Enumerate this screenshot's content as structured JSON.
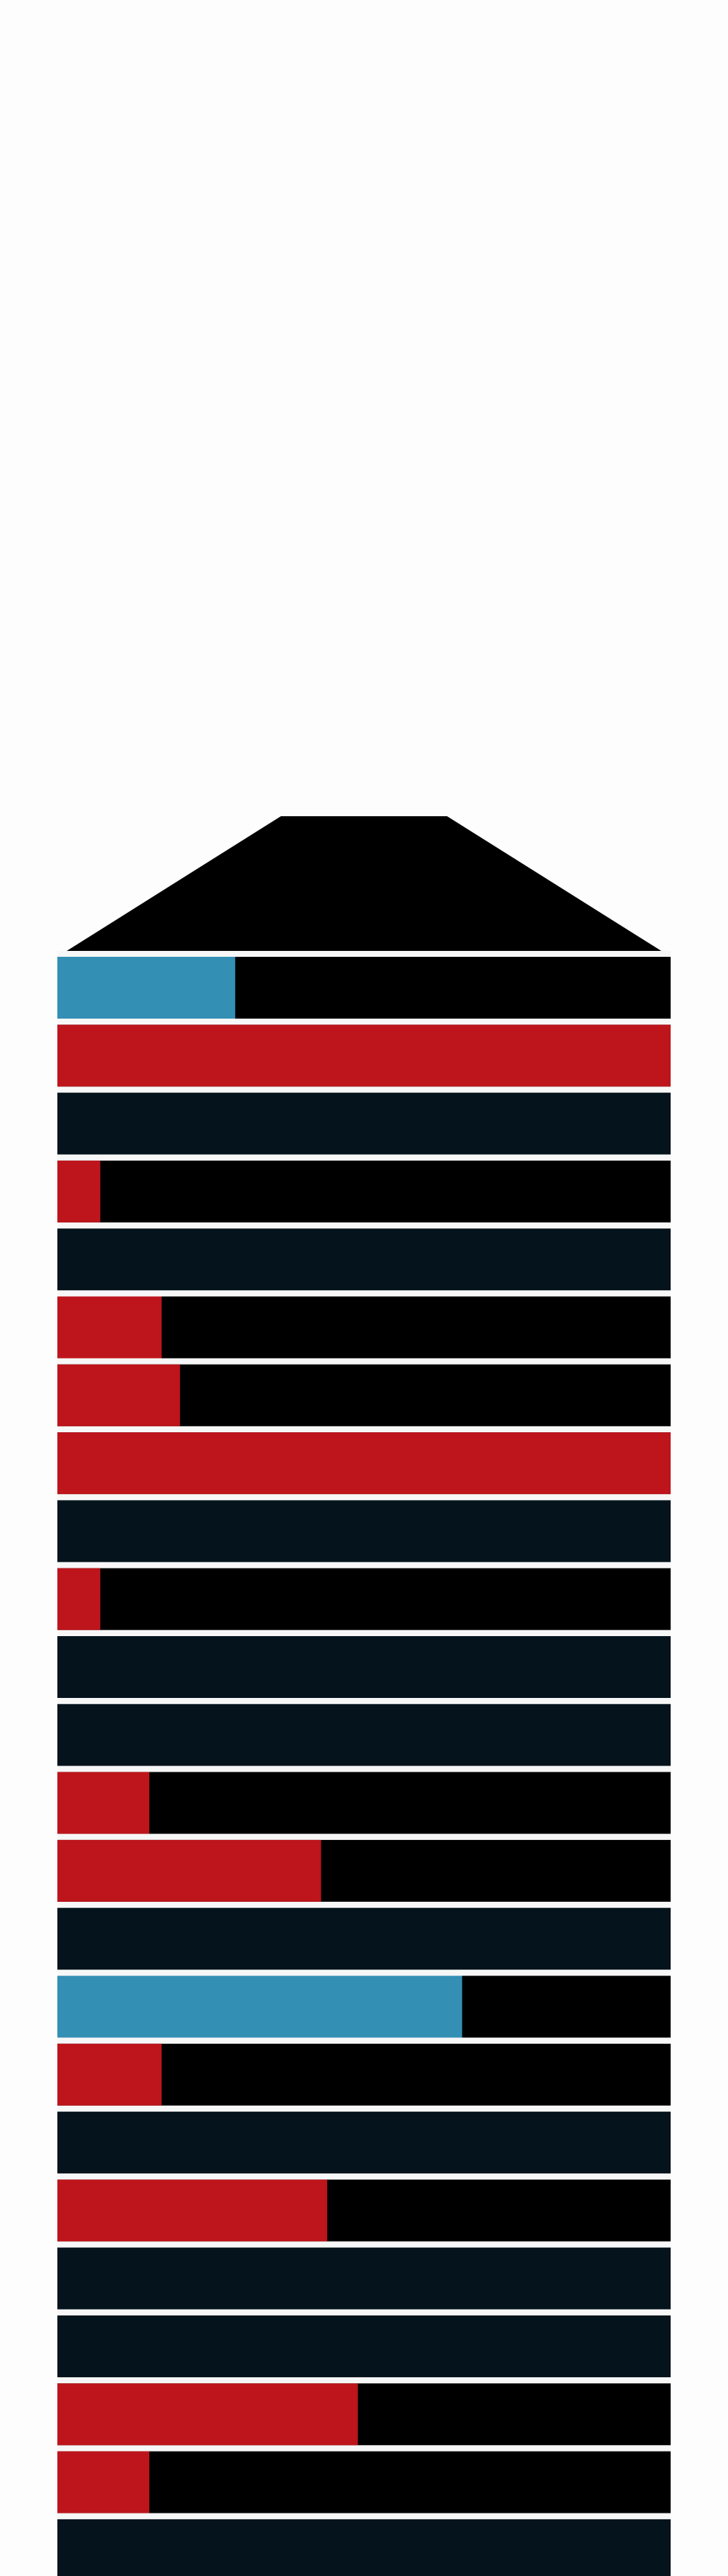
{
  "chart_data": {
    "type": "bar",
    "orientation": "horizontal",
    "stacked": true,
    "title": "",
    "xlabel": "",
    "ylabel": "",
    "xlim": [
      0,
      1
    ],
    "grid": false,
    "legend": "none",
    "colors": {
      "background": "#fdfdfd",
      "cap": "#000000",
      "track": "#000000",
      "empty_row": "#05141c",
      "highlight": "#338fb4",
      "active": "#be151c",
      "separator": "#f7f7f7"
    },
    "rows": [
      {
        "kind": "highlight",
        "value": 0.29
      },
      {
        "kind": "active",
        "value": 1.0
      },
      {
        "kind": "empty",
        "value": 0.0
      },
      {
        "kind": "active",
        "value": 0.07
      },
      {
        "kind": "empty",
        "value": 0.0
      },
      {
        "kind": "active",
        "value": 0.17
      },
      {
        "kind": "active",
        "value": 0.2
      },
      {
        "kind": "active",
        "value": 1.0
      },
      {
        "kind": "empty",
        "value": 0.0
      },
      {
        "kind": "active",
        "value": 0.07
      },
      {
        "kind": "empty",
        "value": 0.0
      },
      {
        "kind": "empty",
        "value": 0.0
      },
      {
        "kind": "active",
        "value": 0.15
      },
      {
        "kind": "active",
        "value": 0.43
      },
      {
        "kind": "empty",
        "value": 0.0
      },
      {
        "kind": "highlight",
        "value": 0.66
      },
      {
        "kind": "active",
        "value": 0.17
      },
      {
        "kind": "empty",
        "value": 0.0
      },
      {
        "kind": "active",
        "value": 0.44
      },
      {
        "kind": "empty",
        "value": 0.0
      },
      {
        "kind": "empty",
        "value": 0.0
      },
      {
        "kind": "active",
        "value": 0.49
      },
      {
        "kind": "active",
        "value": 0.15
      },
      {
        "kind": "empty",
        "value": 0.0
      }
    ]
  }
}
